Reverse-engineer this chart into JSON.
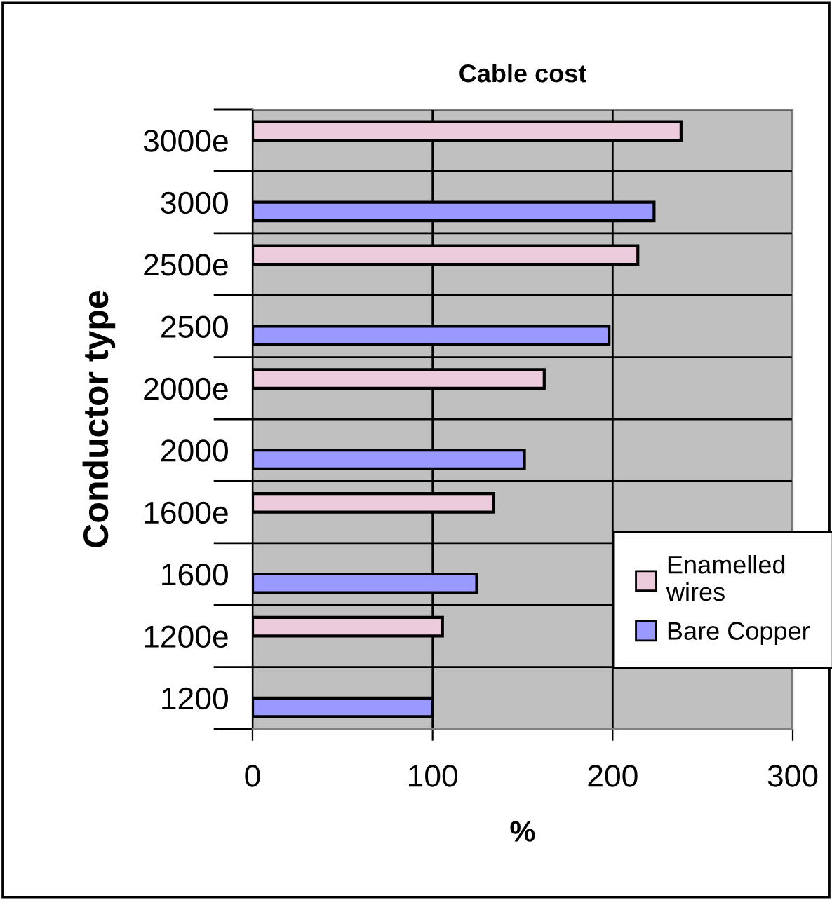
{
  "chart_data": {
    "type": "bar",
    "orientation": "horizontal",
    "title": "Cable cost",
    "xlabel": "%",
    "ylabel": "Conductor type",
    "categories": [
      "3000e",
      "3000",
      "2500e",
      "2500",
      "2000e",
      "2000",
      "1600e",
      "1600",
      "1200e",
      "1200"
    ],
    "series": [
      {
        "name": "Enamelled wires",
        "color": "#ecccdc",
        "values": [
          238,
          null,
          214,
          null,
          162,
          null,
          134,
          null,
          105.5,
          null
        ]
      },
      {
        "name": "Bare Copper",
        "color": "#9999ff",
        "values": [
          null,
          223,
          null,
          198,
          null,
          151,
          null,
          124.5,
          null,
          100
        ]
      }
    ],
    "xlim": [
      0,
      300
    ],
    "xticks": [
      0,
      100,
      200,
      300
    ],
    "grid": true,
    "legend": "right"
  }
}
